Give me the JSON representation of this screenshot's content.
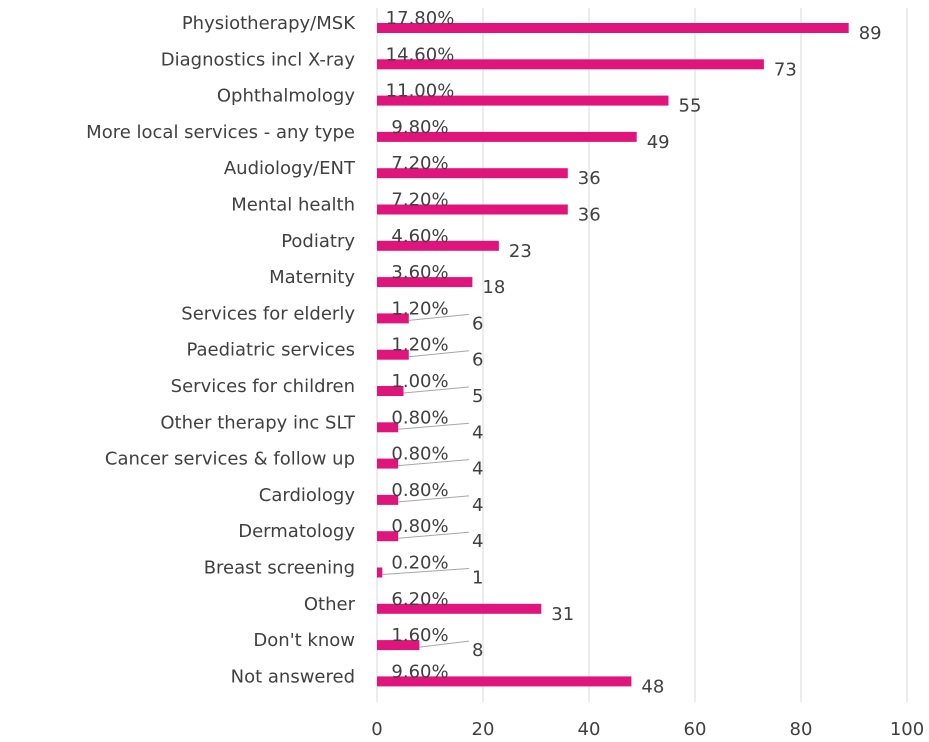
{
  "chart_data": {
    "type": "barh",
    "categories": [
      "Physiotherapy/MSK",
      "Diagnostics incl X-ray",
      "Ophthalmology",
      "More local services - any type",
      "Audiology/ENT",
      "Mental health",
      "Podiatry",
      "Maternity",
      "Services for elderly",
      "Paediatric services",
      "Services for children",
      "Other therapy inc SLT",
      "Cancer services & follow up",
      "Cardiology",
      "Dermatology",
      "Breast screening",
      "Other",
      "Don't know",
      "Not answered"
    ],
    "values": [
      89,
      73,
      55,
      49,
      36,
      36,
      23,
      18,
      6,
      6,
      5,
      4,
      4,
      4,
      4,
      1,
      31,
      8,
      48
    ],
    "percent_labels": [
      "17.80%",
      "14.60%",
      "11.00%",
      "9.80%",
      "7.20%",
      "7.20%",
      "4.60%",
      "3.60%",
      "1.20%",
      "1.20%",
      "1.00%",
      "0.80%",
      "0.80%",
      "0.80%",
      "0.80%",
      "0.20%",
      "6.20%",
      "1.60%",
      "9.60%"
    ],
    "color": "#e0157c",
    "xlim": [
      0,
      100
    ],
    "xticks": [
      0,
      20,
      40,
      60,
      80,
      100
    ],
    "grid": true
  }
}
